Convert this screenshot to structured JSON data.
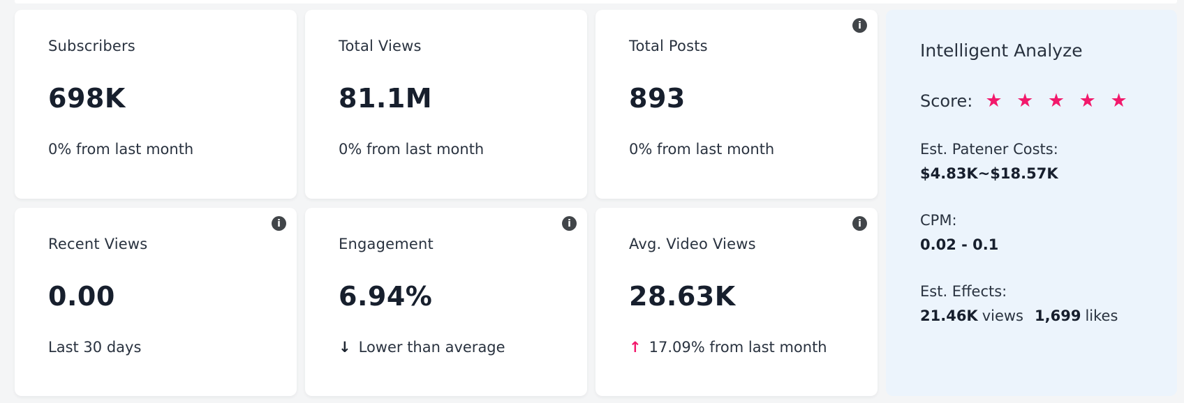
{
  "colors": {
    "page_bg": "#f4f5f6",
    "card_bg": "#ffffff",
    "panel_bg": "#ecf4fc",
    "text": "#29323f",
    "value_text": "#171f2d",
    "accent_pink": "#f2186b",
    "info_icon_bg": "#414549"
  },
  "icons": {
    "info": "i",
    "down_arrow": "↓",
    "up_arrow": "↑"
  },
  "cards": [
    {
      "title": "Subscribers",
      "value": "698K",
      "subtitle": "0% from last month"
    },
    {
      "title": "Total Views",
      "value": "81.1M",
      "subtitle": "0% from last month"
    },
    {
      "title": "Total Posts",
      "value": "893",
      "subtitle": "0% from last month"
    },
    {
      "title": "Recent Views",
      "value": "0.00",
      "subtitle": "Last 30 days"
    },
    {
      "title": "Engagement",
      "value": "6.94%",
      "subtitle": "Lower than average",
      "trend": "down"
    },
    {
      "title": "Avg. Video Views",
      "value": "28.63K",
      "subtitle": "17.09% from last month",
      "trend": "up"
    }
  ],
  "panel": {
    "title": "Intelligent Analyze",
    "score_label": "Score:",
    "score_stars": 5,
    "stars_text": "★ ★ ★ ★ ★",
    "costs": {
      "label": "Est. Patener Costs:",
      "value": "$4.83K~$18.57K"
    },
    "cpm": {
      "label": "CPM:",
      "value": "0.02 - 0.1"
    },
    "effects": {
      "label": "Est. Effects:",
      "views_value": "21.46K",
      "views_unit": "views",
      "likes_value": "1,699",
      "likes_unit": "likes"
    }
  }
}
